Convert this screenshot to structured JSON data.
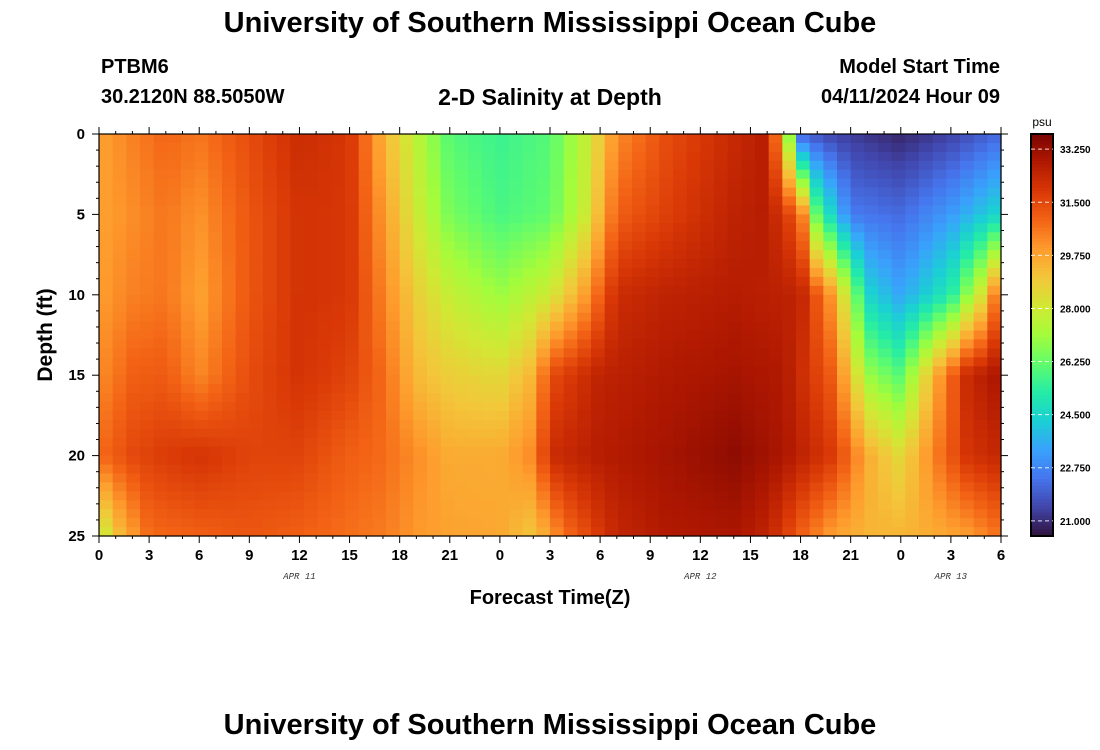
{
  "header": {
    "main_title": "University of Southern Mississippi Ocean Cube",
    "station_id": "PTBM6",
    "station_coords": "30.2120N  88.5050W",
    "plot_subtitle": "2-D Salinity at Depth",
    "model_start_label": "Model Start Time",
    "model_start_value": "04/11/2024 Hour 09",
    "bottom_title": "University of Southern Mississippi Ocean Cube"
  },
  "chart_data": {
    "type": "heatmap",
    "title": "2-D Salinity at Depth",
    "xlabel": "Forecast Time(Z)",
    "ylabel": "Depth (ft)",
    "x_hours_range": [
      0,
      54
    ],
    "y_range": [
      0,
      25
    ],
    "x_ticks": [
      {
        "h": 0,
        "label": "0"
      },
      {
        "h": 3,
        "label": "3"
      },
      {
        "h": 6,
        "label": "6"
      },
      {
        "h": 9,
        "label": "9"
      },
      {
        "h": 12,
        "label": "12"
      },
      {
        "h": 15,
        "label": "15"
      },
      {
        "h": 18,
        "label": "18"
      },
      {
        "h": 21,
        "label": "21"
      },
      {
        "h": 24,
        "label": "0"
      },
      {
        "h": 27,
        "label": "3"
      },
      {
        "h": 30,
        "label": "6"
      },
      {
        "h": 33,
        "label": "9"
      },
      {
        "h": 36,
        "label": "12"
      },
      {
        "h": 39,
        "label": "15"
      },
      {
        "h": 42,
        "label": "18"
      },
      {
        "h": 45,
        "label": "21"
      },
      {
        "h": 48,
        "label": "0"
      },
      {
        "h": 51,
        "label": "3"
      },
      {
        "h": 54,
        "label": "6"
      }
    ],
    "date_labels": [
      {
        "h": 12,
        "label": "APR 11"
      },
      {
        "h": 36,
        "label": "APR 12"
      },
      {
        "h": 51,
        "label": "APR 13"
      }
    ],
    "y_ticks": [
      0,
      5,
      10,
      15,
      20,
      25
    ],
    "colorbar": {
      "unit": "psu",
      "range": [
        20.5,
        33.75
      ],
      "ticks": [
        "33.250",
        "31.500",
        "29.750",
        "28.000",
        "26.250",
        "24.500",
        "22.750",
        "21.000"
      ],
      "colors": [
        "#30123b",
        "#4145ab",
        "#4675ed",
        "#39a2fc",
        "#1bcfd4",
        "#24eca6",
        "#61fc6c",
        "#a4fc3b",
        "#d1e834",
        "#f3c63a",
        "#fe9b2d",
        "#f36315",
        "#d93806",
        "#b11901",
        "#7a0402"
      ]
    },
    "field": {
      "description": "salinity (psu) at nodes [hour, value] per depth row",
      "depths": [
        0,
        5,
        10,
        15,
        20,
        25
      ],
      "rows": [
        [
          [
            0,
            29.8
          ],
          [
            2,
            30.4
          ],
          [
            4,
            30.9
          ],
          [
            6,
            30.6
          ],
          [
            9,
            31.4
          ],
          [
            12,
            32.2
          ],
          [
            15,
            31.9
          ],
          [
            17,
            29.5
          ],
          [
            19,
            27.6
          ],
          [
            21,
            26.0
          ],
          [
            24,
            25.6
          ],
          [
            27,
            26.0
          ],
          [
            29,
            27.6
          ],
          [
            31,
            30.2
          ],
          [
            34,
            31.4
          ],
          [
            38,
            32.3
          ],
          [
            40,
            32.7
          ],
          [
            41,
            29.0
          ],
          [
            42,
            22.0
          ],
          [
            44,
            21.4
          ],
          [
            48,
            20.9
          ],
          [
            51,
            21.4
          ],
          [
            54,
            22.2
          ]
        ],
        [
          [
            0,
            29.8
          ],
          [
            2,
            30.2
          ],
          [
            4,
            30.6
          ],
          [
            6,
            30.1
          ],
          [
            9,
            31.2
          ],
          [
            12,
            32.0
          ],
          [
            15,
            31.9
          ],
          [
            17,
            30.0
          ],
          [
            19,
            28.0
          ],
          [
            21,
            26.5
          ],
          [
            24,
            25.8
          ],
          [
            27,
            26.2
          ],
          [
            29,
            27.8
          ],
          [
            31,
            31.0
          ],
          [
            34,
            31.7
          ],
          [
            38,
            32.5
          ],
          [
            40,
            32.7
          ],
          [
            42,
            31.0
          ],
          [
            43,
            26.0
          ],
          [
            45,
            22.5
          ],
          [
            48,
            22.2
          ],
          [
            51,
            23.2
          ],
          [
            54,
            24.6
          ]
        ],
        [
          [
            0,
            29.9
          ],
          [
            2,
            30.4
          ],
          [
            4,
            30.6
          ],
          [
            6,
            29.8
          ],
          [
            9,
            31.2
          ],
          [
            12,
            32.0
          ],
          [
            15,
            31.9
          ],
          [
            17,
            30.4
          ],
          [
            19,
            28.8
          ],
          [
            21,
            27.8
          ],
          [
            24,
            27.0
          ],
          [
            27,
            28.0
          ],
          [
            29,
            29.8
          ],
          [
            31,
            32.2
          ],
          [
            34,
            32.5
          ],
          [
            38,
            32.7
          ],
          [
            42,
            32.5
          ],
          [
            44,
            29.8
          ],
          [
            46,
            24.5
          ],
          [
            48,
            23.4
          ],
          [
            51,
            25.2
          ],
          [
            53,
            28.5
          ],
          [
            54,
            31.5
          ]
        ],
        [
          [
            0,
            30.2
          ],
          [
            2,
            31.0
          ],
          [
            4,
            31.1
          ],
          [
            6,
            30.3
          ],
          [
            9,
            31.4
          ],
          [
            12,
            32.0
          ],
          [
            15,
            31.6
          ],
          [
            17,
            30.8
          ],
          [
            19,
            29.3
          ],
          [
            21,
            28.8
          ],
          [
            24,
            28.5
          ],
          [
            26,
            29.4
          ],
          [
            27,
            31.4
          ],
          [
            30,
            32.5
          ],
          [
            34,
            32.8
          ],
          [
            38,
            33.0
          ],
          [
            41,
            32.8
          ],
          [
            44,
            31.0
          ],
          [
            46,
            27.0
          ],
          [
            48,
            26.0
          ],
          [
            50,
            29.5
          ],
          [
            52,
            32.3
          ],
          [
            54,
            33.0
          ]
        ],
        [
          [
            0,
            30.8
          ],
          [
            2,
            31.5
          ],
          [
            4,
            31.8
          ],
          [
            6,
            32.0
          ],
          [
            9,
            31.6
          ],
          [
            12,
            31.6
          ],
          [
            15,
            31.0
          ],
          [
            17,
            30.8
          ],
          [
            19,
            30.2
          ],
          [
            21,
            29.6
          ],
          [
            24,
            29.6
          ],
          [
            26,
            30.3
          ],
          [
            27,
            32.2
          ],
          [
            30,
            32.7
          ],
          [
            34,
            33.0
          ],
          [
            38,
            33.4
          ],
          [
            41,
            32.9
          ],
          [
            44,
            31.8
          ],
          [
            46,
            29.6
          ],
          [
            48,
            28.5
          ],
          [
            50,
            30.4
          ],
          [
            52,
            32.0
          ],
          [
            54,
            32.4
          ]
        ],
        [
          [
            0,
            27.5
          ],
          [
            1,
            29.0
          ],
          [
            3,
            30.8
          ],
          [
            6,
            31.0
          ],
          [
            9,
            31.2
          ],
          [
            12,
            31.0
          ],
          [
            15,
            30.7
          ],
          [
            17,
            30.5
          ],
          [
            19,
            30.0
          ],
          [
            21,
            29.8
          ],
          [
            24,
            29.7
          ],
          [
            26,
            29.0
          ],
          [
            28,
            30.8
          ],
          [
            31,
            32.4
          ],
          [
            34,
            32.8
          ],
          [
            38,
            32.9
          ],
          [
            40,
            32.5
          ],
          [
            42,
            31.0
          ],
          [
            44,
            29.8
          ],
          [
            46,
            29.4
          ],
          [
            48,
            29.4
          ],
          [
            50,
            29.6
          ],
          [
            52,
            29.9
          ],
          [
            54,
            30.7
          ]
        ]
      ],
      "columns": 66,
      "rows_count": 45
    }
  }
}
